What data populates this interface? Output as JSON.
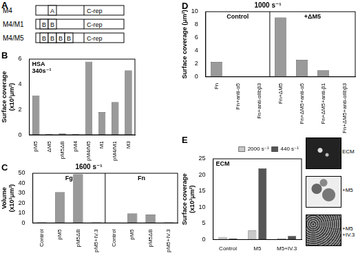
{
  "diagram": {
    "panel": "A",
    "rows": [
      {
        "label": "M4",
        "domains": [
          "A"
        ],
        "tail": "C-rep"
      },
      {
        "label": "M4/M1",
        "domains": [
          "B",
          "B"
        ],
        "tail": "C-rep"
      },
      {
        "label": "M4/M5",
        "domains": [
          "B",
          "B",
          "B",
          "B"
        ],
        "tail": "C-rep"
      }
    ]
  },
  "chart_data": [
    {
      "panel": "B",
      "type": "bar",
      "annotation": [
        "HSA",
        "340s⁻¹"
      ],
      "y_label": [
        "Surface coverage",
        "(x10³μm²)"
      ],
      "categories": [
        "pM5",
        "ΔM5",
        "pM5ΔB",
        "pM4",
        "pM4/M5",
        "M1",
        "pM4/M1",
        "M3"
      ],
      "values": [
        3.1,
        0.05,
        0.1,
        0.05,
        5.8,
        1.8,
        2.6,
        5.1
      ],
      "color": "#9a9a9a",
      "ylim": [
        0,
        6
      ],
      "yticks": [
        0,
        2,
        4,
        6
      ],
      "grid": false
    },
    {
      "panel": "C",
      "type": "bar",
      "title": "1600 s⁻¹",
      "y_label": [
        "Volume",
        "(x10³μm³)"
      ],
      "groups": [
        {
          "label": "Fg",
          "categories": [
            "Control",
            "pM5",
            "pM5ΔB",
            "pM5+IV.3"
          ],
          "values": [
            0.5,
            31,
            49,
            0.5
          ]
        },
        {
          "label": "Fn",
          "categories": [
            "Control",
            "pM5",
            "pM5ΔB",
            "pM5+IV.3"
          ],
          "values": [
            0.3,
            9.5,
            8.5,
            0.5
          ]
        }
      ],
      "color": "#9a9a9a",
      "ylim": [
        0,
        50
      ],
      "yticks": [
        0,
        10,
        20,
        30,
        40,
        50
      ],
      "grid": false
    },
    {
      "panel": "D",
      "type": "bar",
      "title": "1000 s⁻¹",
      "y_label": [
        "Surface coverage (μm²)"
      ],
      "groups": [
        {
          "label": "Control",
          "categories": [
            "Fn",
            "Fn+anti-α5",
            "Fn+anti-αIIbβ3"
          ],
          "values": [
            2.3,
            0.1,
            0.05
          ]
        },
        {
          "label": "+ΔM5",
          "categories": [
            "Fn+ΔM5",
            "Fn+ΔM5+anti-α5",
            "Fn+ΔM5+anti-β1",
            "Fn+ΔM5+anti-αIIbβ3"
          ],
          "values": [
            9.1,
            2.6,
            1.0,
            0.1
          ]
        }
      ],
      "color": "#9a9a9a",
      "ylim": [
        0,
        10
      ],
      "yticks": [
        0,
        2,
        4,
        6,
        8,
        10
      ],
      "grid": false
    },
    {
      "panel": "E",
      "type": "bar",
      "annotation": [
        "ECM"
      ],
      "y_label": [
        "Surface coverage",
        "(x10³μm²)"
      ],
      "categories": [
        "Control",
        "M5",
        "M5+IV.3"
      ],
      "series": [
        {
          "name": "2000 s⁻¹",
          "color": "#c8c8c8",
          "values": [
            0.8,
            2.8,
            0.3
          ]
        },
        {
          "name": "440 s⁻¹",
          "color": "#555555",
          "values": [
            0.3,
            22,
            1.1
          ]
        }
      ],
      "legend": "top-right",
      "ylim": [
        0,
        25
      ],
      "yticks": [
        0,
        5,
        10,
        15,
        20,
        25
      ],
      "grid": false
    }
  ],
  "micrographs": {
    "labels": [
      [
        "ECM"
      ],
      [
        "+M5"
      ],
      [
        "+M5",
        "+IV.3"
      ]
    ]
  }
}
